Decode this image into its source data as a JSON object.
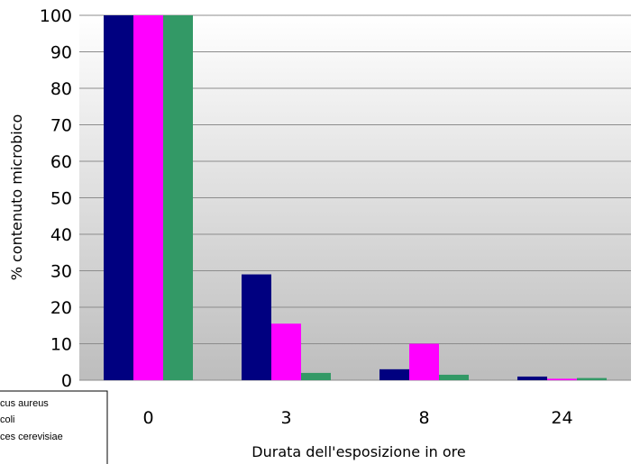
{
  "chart_data": {
    "type": "bar",
    "categories": [
      "0",
      "3",
      "8",
      "24"
    ],
    "series": [
      {
        "name": "Staphylococcus aureus",
        "values": [
          100,
          29,
          3,
          1
        ],
        "color": "#000080"
      },
      {
        "name": "Escherichia coli",
        "values": [
          100,
          15.5,
          10,
          0.4
        ],
        "color": "#FF00FF"
      },
      {
        "name": "Saccharomyces cerevisiae",
        "values": [
          100,
          2,
          1.5,
          0.6
        ],
        "color": "#339966"
      }
    ],
    "title": "",
    "xlabel": "Durata dell'esposizione in ore",
    "ylabel": "% contenuto microbico",
    "ylim": [
      0,
      100
    ],
    "yticks": [
      "0",
      "10",
      "20",
      "30",
      "40",
      "50",
      "60",
      "70",
      "80",
      "90",
      "100"
    ],
    "grid": true,
    "legend_placement": "bottom-left",
    "legend_entries": [
      "cus aureus",
      "coli",
      "ces cerevisiae"
    ]
  }
}
